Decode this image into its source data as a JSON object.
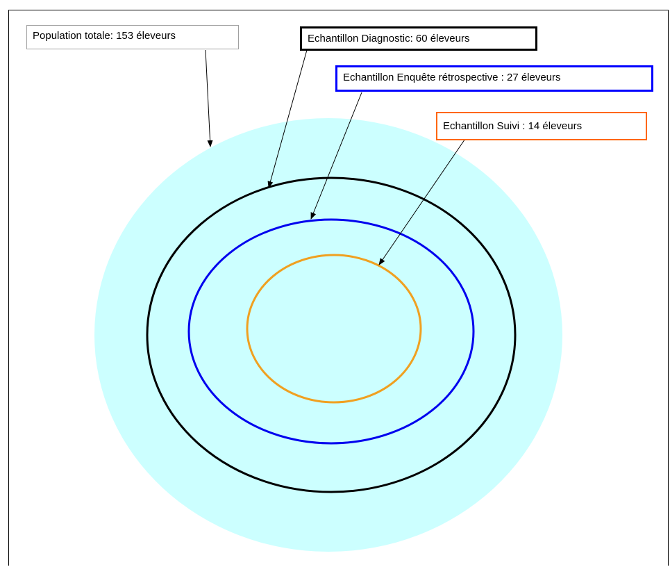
{
  "labels": {
    "population": "Population totale: 153 éleveurs",
    "diagnostic": "Echantillon Diagnostic: 60 éleveurs",
    "retrospective": "Echantillon Enquête rétrospective : 27 éleveurs",
    "suivi": "Echantillon Suivi : 14 éleveurs"
  },
  "colors": {
    "population_fill": "#ccffff",
    "diagnostic": "#000000",
    "retrospective": "#0000ee",
    "suivi": "#f0a020",
    "population_border": "#a0a0a0",
    "retrospective_border": "#0000ff",
    "suivi_border": "#ff6600"
  }
}
